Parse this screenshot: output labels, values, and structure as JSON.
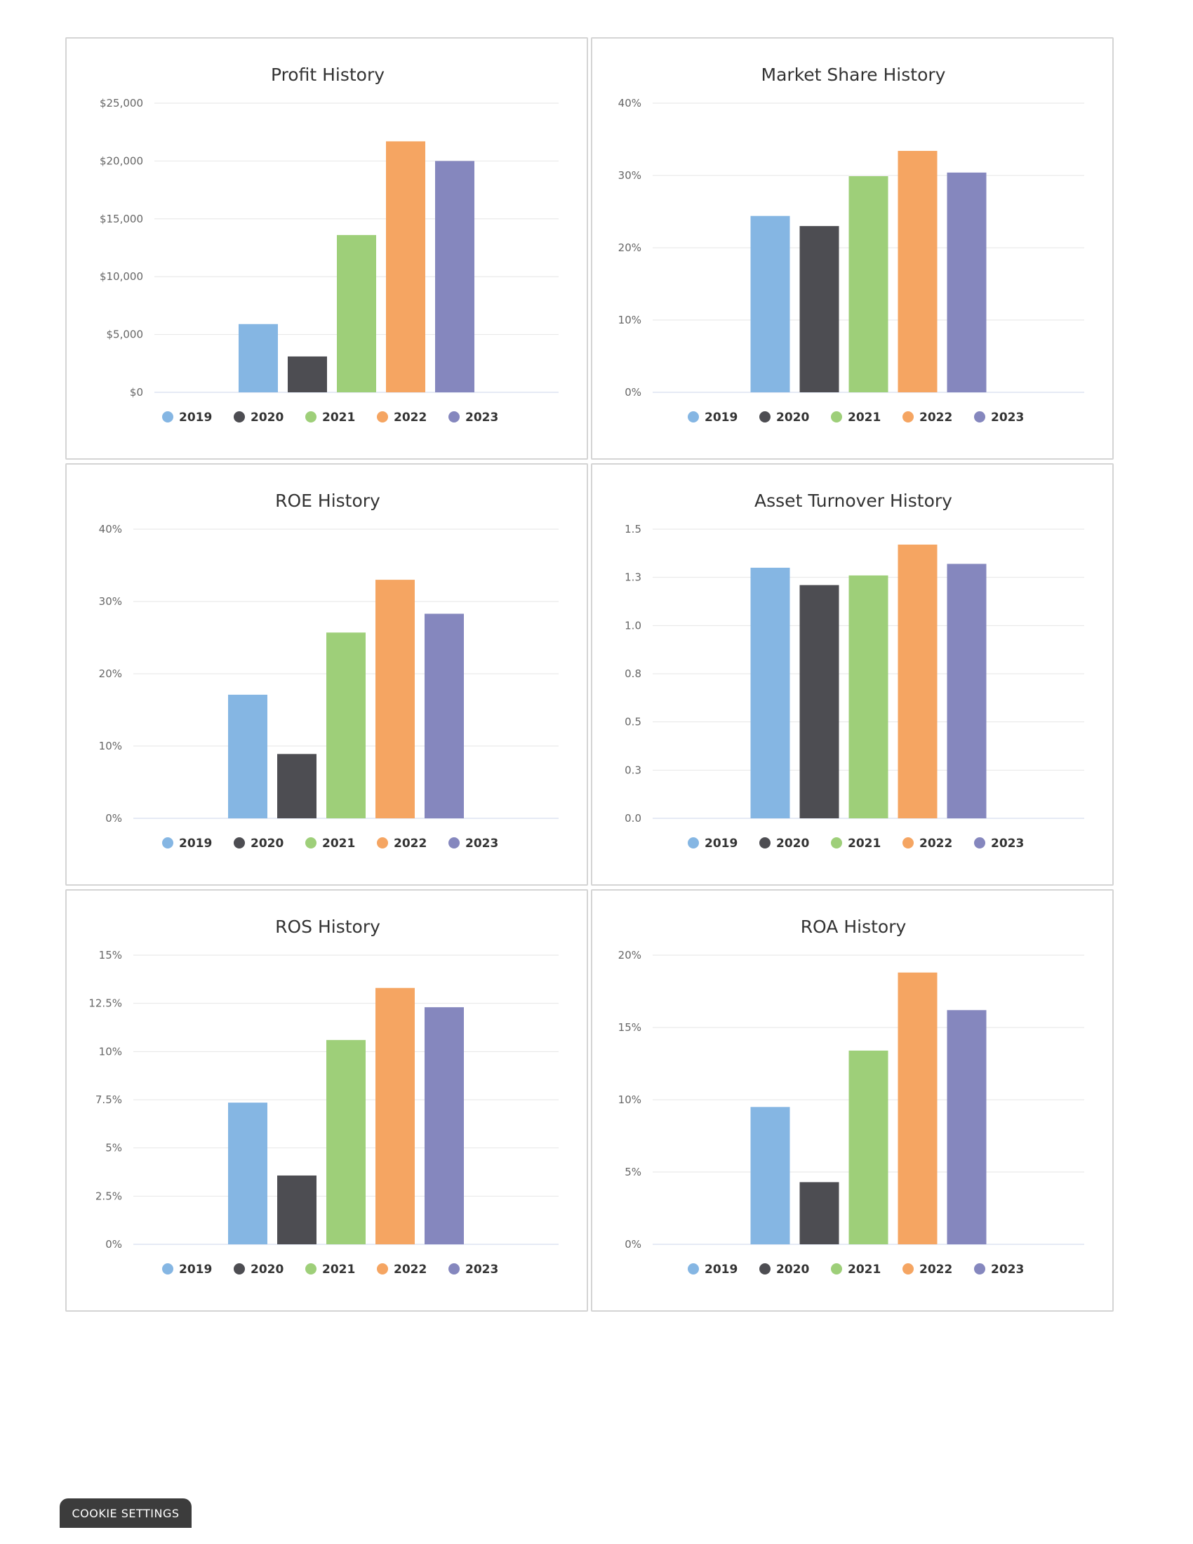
{
  "legend_colors": {
    "2019": "#85b6e3",
    "2020": "#4d4d52",
    "2021": "#9ecf79",
    "2022": "#f5a562",
    "2023": "#8587be"
  },
  "chart_data": [
    {
      "type": "bar",
      "title": "Profit History",
      "categories": [
        "2019",
        "2020",
        "2021",
        "2022",
        "2023"
      ],
      "values": [
        5900,
        3100,
        13600,
        21700,
        20000
      ],
      "ylim": [
        0,
        25000
      ],
      "yticks": [
        0,
        5000,
        10000,
        15000,
        20000,
        25000
      ],
      "ytick_labels": [
        "$0",
        "$5,000",
        "$10,000",
        "$15,000",
        "$20,000",
        "$25,000"
      ],
      "grid": true,
      "legend": "bottom"
    },
    {
      "type": "bar",
      "title": "Market Share History",
      "categories": [
        "2019",
        "2020",
        "2021",
        "2022",
        "2023"
      ],
      "values": [
        24.4,
        23.0,
        29.9,
        33.4,
        30.4
      ],
      "ylim": [
        0,
        40
      ],
      "yticks": [
        0,
        10,
        20,
        30,
        40
      ],
      "ytick_labels": [
        "0%",
        "10%",
        "20%",
        "30%",
        "40%"
      ],
      "grid": true,
      "legend": "bottom"
    },
    {
      "type": "bar",
      "title": "ROE History",
      "categories": [
        "2019",
        "2020",
        "2021",
        "2022",
        "2023"
      ],
      "values": [
        17.1,
        8.9,
        25.7,
        33.0,
        28.3
      ],
      "ylim": [
        0,
        40
      ],
      "yticks": [
        0,
        10,
        20,
        30,
        40
      ],
      "ytick_labels": [
        "0%",
        "10%",
        "20%",
        "30%",
        "40%"
      ],
      "grid": true,
      "legend": "bottom"
    },
    {
      "type": "bar",
      "title": "Asset Turnover History",
      "categories": [
        "2019",
        "2020",
        "2021",
        "2022",
        "2023"
      ],
      "values": [
        1.3,
        1.21,
        1.26,
        1.42,
        1.32
      ],
      "ylim": [
        0,
        1.5
      ],
      "yticks": [
        0,
        0.25,
        0.5,
        0.75,
        1.0,
        1.25,
        1.5
      ],
      "ytick_labels": [
        "0.0",
        "0.3",
        "0.5",
        "0.8",
        "1.0",
        "1.3",
        "1.5"
      ],
      "grid": true,
      "legend": "bottom"
    },
    {
      "type": "bar",
      "title": "ROS History",
      "categories": [
        "2019",
        "2020",
        "2021",
        "2022",
        "2023"
      ],
      "values": [
        7.35,
        3.57,
        10.6,
        13.3,
        12.3
      ],
      "ylim": [
        0,
        15
      ],
      "yticks": [
        0,
        2.5,
        5,
        7.5,
        10,
        12.5,
        15
      ],
      "ytick_labels": [
        "0%",
        "2.5%",
        "5%",
        "7.5%",
        "10%",
        "12.5%",
        "15%"
      ],
      "grid": true,
      "legend": "bottom"
    },
    {
      "type": "bar",
      "title": "ROA History",
      "categories": [
        "2019",
        "2020",
        "2021",
        "2022",
        "2023"
      ],
      "values": [
        9.5,
        4.3,
        13.4,
        18.8,
        16.2
      ],
      "ylim": [
        0,
        20
      ],
      "yticks": [
        0,
        5,
        10,
        15,
        20
      ],
      "ytick_labels": [
        "0%",
        "5%",
        "10%",
        "15%",
        "20%"
      ],
      "grid": true,
      "legend": "bottom"
    }
  ],
  "cookie_button": {
    "label": "COOKIE SETTINGS"
  }
}
